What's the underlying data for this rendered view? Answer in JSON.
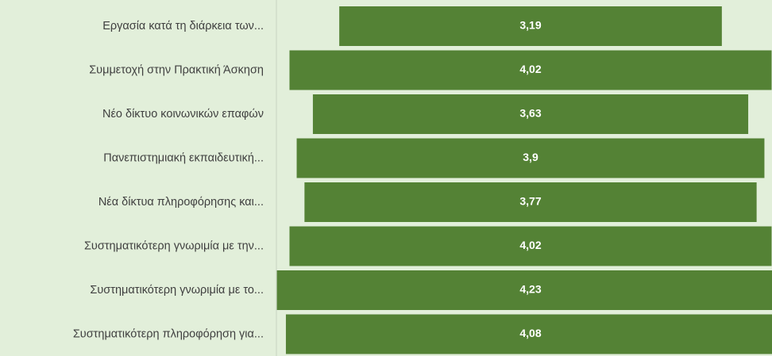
{
  "chart_data": {
    "type": "funnel",
    "categories": [
      "Εργασία κατά τη διάρκεια των...",
      "Συμμετοχή στην Πρακτική Άσκηση",
      "Νέο δίκτυο κοινωνικών επαφών",
      "Πανεπιστημιακή εκπαιδευτική...",
      "Νέα δίκτυα πληροφόρησης και...",
      "Συστηματικότερη γνωριμία με την...",
      "Συστηματικότερη γνωριμία με το...",
      "Συστηματικότερη πληροφόρηση για..."
    ],
    "values": [
      3.19,
      4.02,
      3.63,
      3.9,
      3.77,
      4.02,
      4.23,
      4.08
    ],
    "value_labels": [
      "3,19",
      "4,02",
      "3,63",
      "3,9",
      "3,77",
      "4,02",
      "4,23",
      "4,08"
    ],
    "color": "#548235"
  }
}
